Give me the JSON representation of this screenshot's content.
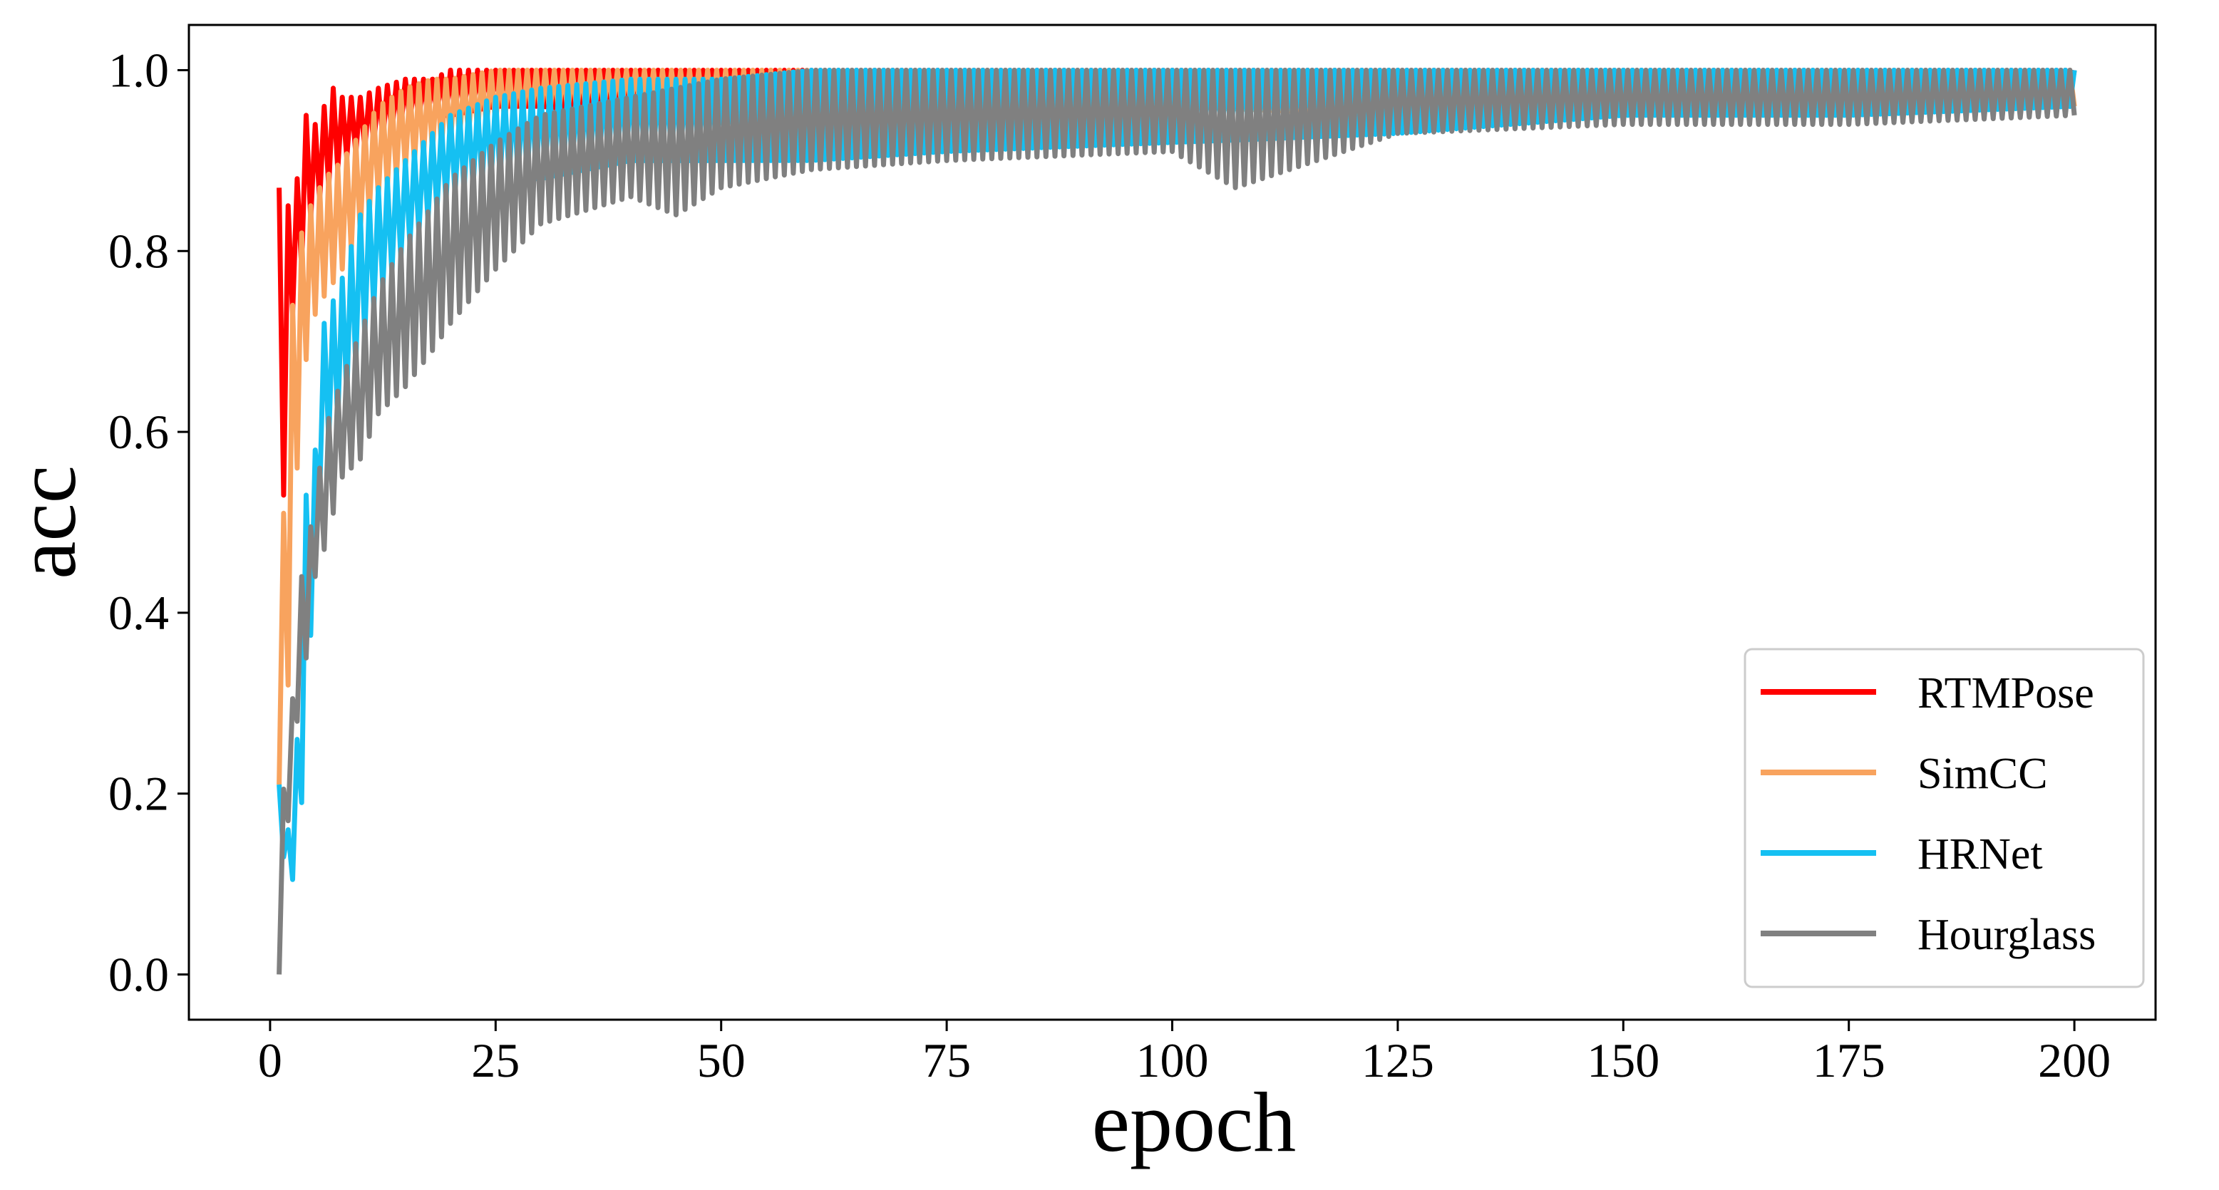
{
  "chart_data": {
    "type": "line",
    "title": "",
    "xlabel": "epoch",
    "ylabel": "acc",
    "xlim": [
      -9,
      209
    ],
    "ylim": [
      -0.05,
      1.05
    ],
    "xticks": [
      0,
      25,
      50,
      75,
      100,
      125,
      150,
      175,
      200
    ],
    "xtick_labels": [
      "0",
      "25",
      "50",
      "75",
      "100",
      "125",
      "150",
      "175",
      "200"
    ],
    "yticks": [
      0.0,
      0.2,
      0.4,
      0.6,
      0.8,
      1.0
    ],
    "ytick_labels": [
      "0.0",
      "0.2",
      "0.4",
      "0.6",
      "0.8",
      "1.0"
    ],
    "grid": false,
    "legend_position": "lower-right",
    "series": [
      {
        "name": "RTMPose",
        "color": "#ff0000",
        "x": [
          1,
          2,
          3,
          4,
          5,
          6,
          7,
          8,
          10,
          12,
          15,
          18,
          20,
          25,
          30,
          40,
          50,
          60,
          75,
          100,
          125,
          150,
          175,
          200
        ],
        "upper": [
          0.87,
          0.85,
          0.88,
          0.95,
          0.94,
          0.96,
          0.98,
          0.97,
          0.97,
          0.98,
          0.99,
          0.99,
          1.0,
          1.0,
          1.0,
          1.0,
          1.0,
          1.0,
          1.0,
          1.0,
          1.0,
          1.0,
          1.0,
          1.0
        ],
        "lower": [
          0.34,
          0.72,
          0.74,
          0.82,
          0.85,
          0.86,
          0.88,
          0.9,
          0.91,
          0.92,
          0.94,
          0.95,
          0.95,
          0.96,
          0.96,
          0.95,
          0.94,
          0.94,
          0.95,
          0.95,
          0.95,
          0.95,
          0.96,
          0.97
        ]
      },
      {
        "name": "SimCC",
        "color": "#f8a35e",
        "x": [
          1,
          2,
          3,
          4,
          5,
          6,
          8,
          10,
          12,
          15,
          18,
          20,
          25,
          30,
          40,
          50,
          60,
          75,
          100,
          125,
          150,
          175,
          200
        ],
        "upper": [
          0.34,
          0.68,
          0.8,
          0.84,
          0.86,
          0.88,
          0.9,
          0.93,
          0.96,
          0.98,
          0.99,
          0.99,
          1.0,
          1.0,
          1.0,
          1.0,
          1.0,
          1.0,
          1.0,
          1.0,
          1.0,
          1.0,
          1.0
        ],
        "lower": [
          0.21,
          0.32,
          0.56,
          0.68,
          0.73,
          0.75,
          0.78,
          0.82,
          0.86,
          0.89,
          0.91,
          0.92,
          0.94,
          0.95,
          0.96,
          0.95,
          0.95,
          0.95,
          0.96,
          0.95,
          0.95,
          0.96,
          0.96
        ]
      },
      {
        "name": "HRNet",
        "color": "#15c0f2",
        "x": [
          1,
          2,
          3,
          4,
          5,
          6,
          8,
          10,
          12,
          15,
          18,
          20,
          25,
          30,
          40,
          50,
          60,
          75,
          100,
          125,
          150,
          175,
          200
        ],
        "upper": [
          0.21,
          0.16,
          0.26,
          0.53,
          0.58,
          0.72,
          0.77,
          0.84,
          0.87,
          0.9,
          0.93,
          0.95,
          0.97,
          0.98,
          0.99,
          0.99,
          1.0,
          1.0,
          1.0,
          1.0,
          1.0,
          1.0,
          1.0
        ],
        "lower": [
          0.16,
          0.1,
          0.11,
          0.27,
          0.48,
          0.58,
          0.62,
          0.69,
          0.75,
          0.8,
          0.84,
          0.86,
          0.88,
          0.88,
          0.9,
          0.9,
          0.9,
          0.91,
          0.92,
          0.93,
          0.95,
          0.95,
          0.96
        ]
      },
      {
        "name": "Hourglass",
        "color": "#808080",
        "x": [
          1,
          2,
          3,
          4,
          5,
          6,
          8,
          10,
          12,
          15,
          18,
          20,
          25,
          30,
          40,
          45,
          50,
          60,
          75,
          100,
          107,
          125,
          150,
          175,
          200
        ],
        "upper": [
          0.21,
          0.2,
          0.41,
          0.47,
          0.52,
          0.6,
          0.66,
          0.71,
          0.76,
          0.81,
          0.85,
          0.88,
          0.92,
          0.95,
          0.97,
          0.98,
          0.99,
          1.0,
          1.0,
          1.0,
          1.0,
          1.0,
          1.0,
          1.0,
          1.0
        ],
        "lower": [
          0.0,
          0.17,
          0.28,
          0.35,
          0.44,
          0.47,
          0.55,
          0.57,
          0.62,
          0.65,
          0.69,
          0.72,
          0.78,
          0.83,
          0.86,
          0.84,
          0.87,
          0.89,
          0.9,
          0.91,
          0.87,
          0.93,
          0.94,
          0.94,
          0.95
        ]
      }
    ]
  }
}
